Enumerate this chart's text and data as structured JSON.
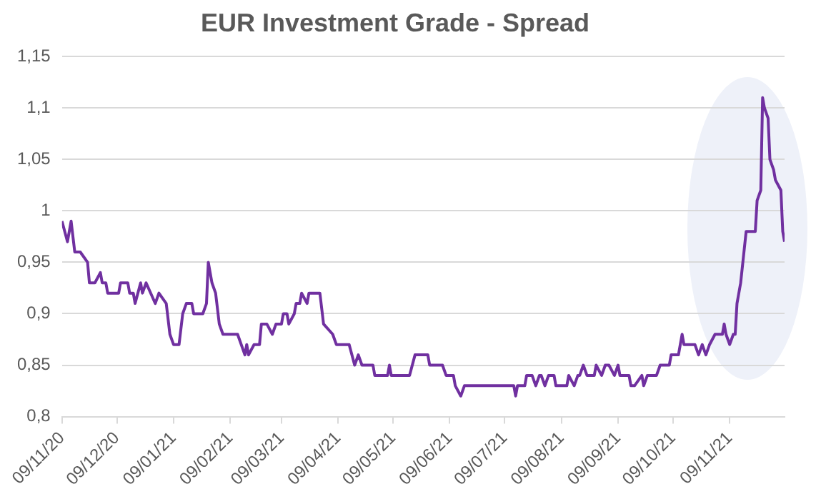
{
  "chart_data": {
    "type": "line",
    "title": "EUR Investment Grade - Spread",
    "xlim": [
      "2020-11-09",
      "2021-12-09"
    ],
    "xticks": [
      {
        "value": "2020-11-09",
        "label": "09/11/20"
      },
      {
        "value": "2020-12-09",
        "label": "09/12/20"
      },
      {
        "value": "2021-01-09",
        "label": "09/01/21"
      },
      {
        "value": "2021-02-09",
        "label": "09/02/21"
      },
      {
        "value": "2021-03-09",
        "label": "09/03/21"
      },
      {
        "value": "2021-04-09",
        "label": "09/04/21"
      },
      {
        "value": "2021-05-09",
        "label": "09/05/21"
      },
      {
        "value": "2021-06-09",
        "label": "09/06/21"
      },
      {
        "value": "2021-07-09",
        "label": "09/07/21"
      },
      {
        "value": "2021-08-09",
        "label": "09/08/21"
      },
      {
        "value": "2021-09-09",
        "label": "09/09/21"
      },
      {
        "value": "2021-10-09",
        "label": "09/10/21"
      },
      {
        "value": "2021-11-09",
        "label": "09/11/21"
      }
    ],
    "ylim": [
      0.8,
      1.15
    ],
    "yticks": [
      {
        "value": 0.8,
        "label": "0,8"
      },
      {
        "value": 0.85,
        "label": "0,85"
      },
      {
        "value": 0.9,
        "label": "0,9"
      },
      {
        "value": 0.95,
        "label": "0,95"
      },
      {
        "value": 1,
        "label": "1"
      },
      {
        "value": 1.05,
        "label": "1,05"
      },
      {
        "value": 1.1,
        "label": "1,1"
      },
      {
        "value": 1.15,
        "label": "1,15"
      }
    ],
    "grid": "y",
    "legend": false,
    "marker": "none",
    "line_style": "solid",
    "x": [
      "2020-11-09",
      "2020-11-12",
      "2020-11-14",
      "2020-11-16",
      "2020-11-19",
      "2020-11-23",
      "2020-11-24",
      "2020-11-27",
      "2020-11-30",
      "2020-12-01",
      "2020-12-03",
      "2020-12-04",
      "2020-12-10",
      "2020-12-11",
      "2020-12-15",
      "2020-12-16",
      "2020-12-18",
      "2020-12-19",
      "2020-12-22",
      "2020-12-23",
      "2020-12-25",
      "2020-12-30",
      "2021-01-01",
      "2021-01-05",
      "2021-01-07",
      "2021-01-09",
      "2021-01-12",
      "2021-01-14",
      "2021-01-16",
      "2021-01-19",
      "2021-01-20",
      "2021-01-25",
      "2021-01-27",
      "2021-01-28",
      "2021-01-30",
      "2021-02-01",
      "2021-02-03",
      "2021-02-05",
      "2021-02-13",
      "2021-02-15",
      "2021-02-17",
      "2021-02-18",
      "2021-02-19",
      "2021-02-22",
      "2021-02-25",
      "2021-02-26",
      "2021-03-01",
      "2021-03-04",
      "2021-03-06",
      "2021-03-09",
      "2021-03-10",
      "2021-03-12",
      "2021-03-13",
      "2021-03-16",
      "2021-03-17",
      "2021-03-19",
      "2021-03-20",
      "2021-03-23",
      "2021-03-24",
      "2021-03-30",
      "2021-04-01",
      "2021-04-06",
      "2021-04-08",
      "2021-04-15",
      "2021-04-18",
      "2021-04-20",
      "2021-04-22",
      "2021-04-28",
      "2021-04-29",
      "2021-05-06",
      "2021-05-07",
      "2021-05-08",
      "2021-05-18",
      "2021-05-21",
      "2021-05-28",
      "2021-05-29",
      "2021-06-05",
      "2021-06-07",
      "2021-06-11",
      "2021-06-12",
      "2021-06-15",
      "2021-06-17",
      "2021-07-14",
      "2021-07-15",
      "2021-07-16",
      "2021-07-20",
      "2021-07-21",
      "2021-07-24",
      "2021-07-26",
      "2021-07-28",
      "2021-07-29",
      "2021-07-31",
      "2021-08-02",
      "2021-08-05",
      "2021-08-06",
      "2021-08-12",
      "2021-08-13",
      "2021-08-16",
      "2021-08-18",
      "2021-08-19",
      "2021-08-21",
      "2021-08-23",
      "2021-08-27",
      "2021-08-28",
      "2021-08-31",
      "2021-09-02",
      "2021-09-04",
      "2021-09-07",
      "2021-09-09",
      "2021-09-10",
      "2021-09-15",
      "2021-09-16",
      "2021-09-18",
      "2021-09-22",
      "2021-09-23",
      "2021-09-25",
      "2021-09-30",
      "2021-10-02",
      "2021-10-07",
      "2021-10-08",
      "2021-10-12",
      "2021-10-13",
      "2021-10-14",
      "2021-10-15",
      "2021-10-21",
      "2021-10-23",
      "2021-10-25",
      "2021-10-27",
      "2021-10-29",
      "2021-11-01",
      "2021-11-05",
      "2021-11-06",
      "2021-11-07",
      "2021-11-09",
      "2021-11-11",
      "2021-11-12",
      "2021-11-13",
      "2021-11-15",
      "2021-11-18",
      "2021-11-23",
      "2021-11-24",
      "2021-11-26",
      "2021-11-27",
      "2021-11-28",
      "2021-11-30",
      "2021-12-01",
      "2021-12-03",
      "2021-12-04",
      "2021-12-07",
      "2021-12-08",
      "2021-12-09"
    ],
    "series": [
      {
        "color": "#7030a0",
        "values": [
          0.99,
          0.97,
          0.99,
          0.96,
          0.96,
          0.95,
          0.93,
          0.93,
          0.94,
          0.93,
          0.93,
          0.92,
          0.92,
          0.93,
          0.93,
          0.92,
          0.92,
          0.91,
          0.93,
          0.92,
          0.93,
          0.91,
          0.92,
          0.91,
          0.88,
          0.87,
          0.87,
          0.9,
          0.91,
          0.91,
          0.9,
          0.9,
          0.91,
          0.95,
          0.93,
          0.92,
          0.89,
          0.88,
          0.88,
          0.87,
          0.86,
          0.87,
          0.86,
          0.87,
          0.87,
          0.89,
          0.89,
          0.88,
          0.89,
          0.89,
          0.9,
          0.9,
          0.89,
          0.9,
          0.91,
          0.91,
          0.92,
          0.91,
          0.92,
          0.92,
          0.89,
          0.88,
          0.87,
          0.87,
          0.85,
          0.86,
          0.85,
          0.85,
          0.84,
          0.84,
          0.85,
          0.84,
          0.84,
          0.86,
          0.86,
          0.85,
          0.85,
          0.84,
          0.84,
          0.83,
          0.82,
          0.83,
          0.83,
          0.82,
          0.83,
          0.83,
          0.84,
          0.84,
          0.83,
          0.84,
          0.84,
          0.83,
          0.84,
          0.84,
          0.83,
          0.83,
          0.84,
          0.83,
          0.84,
          0.84,
          0.85,
          0.84,
          0.84,
          0.85,
          0.84,
          0.85,
          0.85,
          0.84,
          0.85,
          0.84,
          0.84,
          0.83,
          0.83,
          0.84,
          0.83,
          0.84,
          0.84,
          0.85,
          0.85,
          0.86,
          0.86,
          0.87,
          0.88,
          0.87,
          0.87,
          0.86,
          0.87,
          0.86,
          0.87,
          0.88,
          0.88,
          0.89,
          0.88,
          0.87,
          0.88,
          0.88,
          0.91,
          0.93,
          0.98,
          0.98,
          1.01,
          1.02,
          1.11,
          1.1,
          1.09,
          1.05,
          1.04,
          1.03,
          1.02,
          0.98,
          0.97
        ]
      }
    ]
  }
}
